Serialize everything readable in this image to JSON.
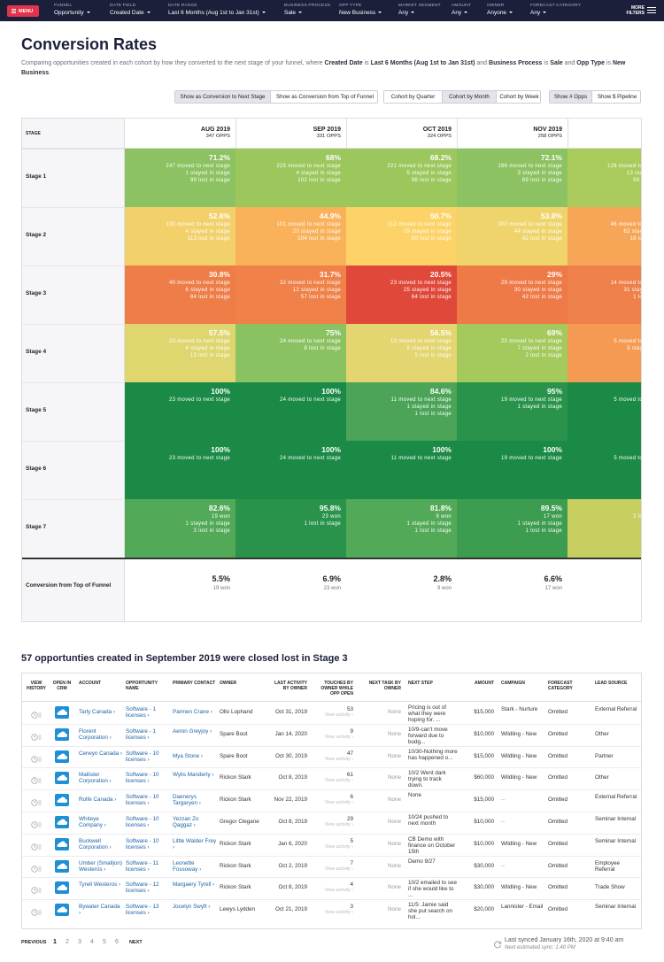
{
  "nav": {
    "menu": "MENU",
    "filters": [
      {
        "label": "FUNNEL",
        "value": "Opportunity"
      },
      {
        "label": "DATE FIELD",
        "value": "Created Date"
      },
      {
        "label": "DATE RANGE",
        "value": "Last 6 Months (Aug 1st to Jan 31st)"
      },
      {
        "label": "BUSINESS PROCESS",
        "value": "Sale"
      },
      {
        "label": "OPP TYPE",
        "value": "New Business"
      },
      {
        "label": "MARKET SEGMENT",
        "value": "Any"
      },
      {
        "label": "AMOUNT",
        "value": "Any"
      },
      {
        "label": "OWNER",
        "value": "Anyone"
      },
      {
        "label": "FORECAST CATEGORY",
        "value": "Any"
      }
    ],
    "more": [
      "MORE",
      "FILTERS"
    ]
  },
  "header": {
    "title": "Conversion Rates",
    "description": [
      {
        "t": "Comparing opportunities created in each cohort by how they converted to the next stage of your funnel, where ",
        "b": false
      },
      {
        "t": "Created Date",
        "b": true
      },
      {
        "t": " is ",
        "b": false
      },
      {
        "t": "Last 6 Months (Aug 1st to Jan 31st)",
        "b": true
      },
      {
        "t": " and ",
        "b": false
      },
      {
        "t": "Business Process",
        "b": true
      },
      {
        "t": " is ",
        "b": false
      },
      {
        "t": "Sale",
        "b": true
      },
      {
        "t": " and ",
        "b": false
      },
      {
        "t": "Opp Type",
        "b": true
      },
      {
        "t": " is ",
        "b": false
      },
      {
        "t": "New Business",
        "b": true
      },
      {
        "t": ".",
        "b": false
      }
    ]
  },
  "buttons": [
    {
      "items": [
        "Show as Conversion to Next Stage",
        "Show as Conversion from Top of Funnel"
      ],
      "active": 0
    },
    {
      "items": [
        "Cohort by Quarter",
        "Cohort by Month",
        "Cohort by Week"
      ],
      "active": 1
    },
    {
      "items": [
        "Show # Opps",
        "Show $ Pipeline"
      ],
      "active": 0
    }
  ],
  "heatmap": {
    "stage_header": "STAGE",
    "columns": [
      {
        "month": "AUG 2019",
        "opps": "347 OPPS"
      },
      {
        "month": "SEP 2019",
        "opps": "331 OPPS"
      },
      {
        "month": "OCT 2019",
        "opps": "324 OPPS"
      },
      {
        "month": "NOV 2019",
        "opps": "258 OPPS"
      }
    ],
    "rows": [
      {
        "stage": "Stage 1",
        "cells": [
          {
            "pct": "71.2%",
            "lines": [
              "247 moved to next stage",
              "1 stayed in stage",
              "99 lost in stage"
            ],
            "color": "#8cc261"
          },
          {
            "pct": "68%",
            "lines": [
              "225 moved to next stage",
              "4 stayed in stage",
              "102 lost in stage"
            ],
            "color": "#9bc75d"
          },
          {
            "pct": "68.2%",
            "lines": [
              "221 moved to next stage",
              "5 stayed in stage",
              "98 lost in stage"
            ],
            "color": "#9bc75d"
          },
          {
            "pct": "72.1%",
            "lines": [
              "186 moved to next stage",
              "3 stayed in stage",
              "69 lost in stage"
            ],
            "color": "#8cc261"
          }
        ],
        "partial": {
          "lines": [
            "126 moved to",
            "13 sta",
            "59 l"
          ],
          "color": "#a9cb5b"
        }
      },
      {
        "stage": "Stage 2",
        "cells": [
          {
            "pct": "52.6%",
            "lines": [
              "130 moved to next stage",
              "4 stayed in stage",
              "113 lost in stage"
            ],
            "color": "#f2d16b"
          },
          {
            "pct": "44.9%",
            "lines": [
              "101 moved to next stage",
              "20 stayed in stage",
              "104 lost in stage"
            ],
            "color": "#f9b15a"
          },
          {
            "pct": "50.7%",
            "lines": [
              "112 moved to next stage",
              "29 stayed in stage",
              "80 lost in stage"
            ],
            "color": "#fdd267"
          },
          {
            "pct": "53.8%",
            "lines": [
              "100 moved to next stage",
              "44 stayed in stage",
              "42 lost in stage"
            ],
            "color": "#efd46c"
          }
        ],
        "partial": {
          "lines": [
            "46 moved to",
            "62 stay",
            "18 lo"
          ],
          "color": "#f7a657"
        }
      },
      {
        "stage": "Stage 3",
        "cells": [
          {
            "pct": "30.8%",
            "lines": [
              "40 moved to next stage",
              "6 stayed in stage",
              "84 lost in stage"
            ],
            "color": "#ee7d48"
          },
          {
            "pct": "31.7%",
            "lines": [
              "32 moved to next stage",
              "12 stayed in stage",
              "57 lost in stage"
            ],
            "color": "#ef8149"
          },
          {
            "pct": "20.5%",
            "lines": [
              "23 moved to next stage",
              "25 stayed in stage",
              "64 lost in stage"
            ],
            "color": "#e0493a"
          },
          {
            "pct": "29%",
            "lines": [
              "29 moved to next stage",
              "30 stayed in stage",
              "42 lost in stage"
            ],
            "color": "#ee7b47"
          }
        ],
        "partial": {
          "lines": [
            "14 moved to",
            "31 stay",
            "1 lo"
          ],
          "color": "#ee8049"
        }
      },
      {
        "stage": "Stage 4",
        "cells": [
          {
            "pct": "57.5%",
            "lines": [
              "23 moved to next stage",
              "4 stayed in stage",
              "13 lost in stage"
            ],
            "color": "#e0d66f"
          },
          {
            "pct": "75%",
            "lines": [
              "24 moved to next stage",
              "8 lost in stage"
            ],
            "color": "#8bc261"
          },
          {
            "pct": "56.5%",
            "lines": [
              "13 moved to next stage",
              "5 stayed in stage",
              "5 lost in stage"
            ],
            "color": "#e3d56f"
          },
          {
            "pct": "69%",
            "lines": [
              "20 moved to next stage",
              "7 stayed in stage",
              "2 lost in stage"
            ],
            "color": "#a4c95c"
          }
        ],
        "partial": {
          "lines": [
            "5 moved to",
            "5 stay"
          ],
          "color": "#f59a52"
        }
      },
      {
        "stage": "Stage 5",
        "cells": [
          {
            "pct": "100%",
            "lines": [
              "23 moved to next stage"
            ],
            "color": "#1b8a46"
          },
          {
            "pct": "100%",
            "lines": [
              "24 moved to next stage"
            ],
            "color": "#1b8a46"
          },
          {
            "pct": "84.6%",
            "lines": [
              "11 moved to next stage",
              "1 stayed in stage",
              "1 lost in stage"
            ],
            "color": "#4ba457"
          },
          {
            "pct": "95%",
            "lines": [
              "19 moved to next stage",
              "1 stayed in stage"
            ],
            "color": "#2a934b"
          }
        ],
        "partial": {
          "lines": [
            "5 moved to"
          ],
          "color": "#1b8a46"
        }
      },
      {
        "stage": "Stage 6",
        "cells": [
          {
            "pct": "100%",
            "lines": [
              "23 moved to next stage"
            ],
            "color": "#1b8a46"
          },
          {
            "pct": "100%",
            "lines": [
              "24 moved to next stage"
            ],
            "color": "#1b8a46"
          },
          {
            "pct": "100%",
            "lines": [
              "11 moved to next stage"
            ],
            "color": "#1b8a46"
          },
          {
            "pct": "100%",
            "lines": [
              "19 moved to next stage"
            ],
            "color": "#1b8a46"
          }
        ],
        "partial": {
          "lines": [
            "5 moved to"
          ],
          "color": "#1b8a46"
        }
      },
      {
        "stage": "Stage 7",
        "cells": [
          {
            "pct": "82.6%",
            "lines": [
              "19 won",
              "1 stayed in stage",
              "3 lost in stage"
            ],
            "color": "#52a958"
          },
          {
            "pct": "95.8%",
            "lines": [
              "23 won",
              "1 lost in stage"
            ],
            "color": "#2a934b"
          },
          {
            "pct": "81.8%",
            "lines": [
              "9 won",
              "1 stayed in stage",
              "1 lost in stage"
            ],
            "color": "#52a958"
          },
          {
            "pct": "89.5%",
            "lines": [
              "17 won",
              "1 stayed in stage",
              "1 lost in stage"
            ],
            "color": "#3c9c50"
          }
        ],
        "partial": {
          "lines": [
            "2 lo"
          ],
          "color": "#c7cf60"
        }
      }
    ],
    "total": {
      "label": "Conversion from Top of Funnel",
      "cells": [
        {
          "pct": "5.5%",
          "won": "19 won"
        },
        {
          "pct": "6.9%",
          "won": "23 won"
        },
        {
          "pct": "2.8%",
          "won": "9 won"
        },
        {
          "pct": "6.6%",
          "won": "17 won"
        }
      ]
    }
  },
  "lost": {
    "title": "57 opportunties created in September 2019 were closed lost in Stage 3",
    "headers": [
      "VIEW HISTORY",
      "OPEN IN CRM",
      "ACCOUNT",
      "OPPORTUNITY NAME",
      "PRIMARY CONTACT",
      "OWNER",
      "LAST ACTIVITY BY OWNER",
      "TOUCHES BY OWNER WHILE OPP OPEN",
      "NEXT TASK BY OWNER",
      "NEXT STEP",
      "AMOUNT",
      "CAMPAIGN",
      "FORECAST CATEGORY",
      "LEAD SOURCE"
    ],
    "view_activity": "View activity ›",
    "rows": [
      {
        "account": "Tarly Canada ›",
        "opportunity": "Software - 1 licenses ›",
        "contact": "Parmen Crane ›",
        "owner": "Ollo Lophand",
        "last_activity": "Oct 31, 2019",
        "touches": "53",
        "next_task": "None",
        "next_step": "Pricing is out of what they were hoping for. ...",
        "amount": "$15,000",
        "campaign": "Stark - Nurture",
        "forecast": "Omitted",
        "lead_source": "External Referral"
      },
      {
        "account": "Florent Corporation ›",
        "opportunity": "Software - 1 licenses ›",
        "contact": "Aeron Greyjoy ›",
        "owner": "Spare Boot",
        "last_activity": "Jan 14, 2020",
        "touches": "9",
        "next_task": "None",
        "next_step": "10/9-can't move forward due to budg...",
        "amount": "$10,000",
        "campaign": "Wildling - New",
        "forecast": "Omitted",
        "lead_source": "Other"
      },
      {
        "account": "Cerwyn Canada ›",
        "opportunity": "Software - 10 licenses ›",
        "contact": "Mya Stone ›",
        "owner": "Spare Boot",
        "last_activity": "Oct 30, 2019",
        "touches": "47",
        "next_task": "None",
        "next_step": "10/30-Nothing more has happened o...",
        "amount": "$15,000",
        "campaign": "Wildling - New",
        "forecast": "Omitted",
        "lead_source": "Partner"
      },
      {
        "account": "Mallister Corporation ›",
        "opportunity": "Software - 10 licenses ›",
        "contact": "Wylis Manderly ›",
        "owner": "Rickon Stark",
        "last_activity": "Oct 8, 2019",
        "touches": "61",
        "next_task": "None",
        "next_step": "10/2 Went dark trying to track down.",
        "amount": "$60,000",
        "campaign": "Wildling - New",
        "forecast": "Omitted",
        "lead_source": "Other"
      },
      {
        "account": "Rolfe Canada ›",
        "opportunity": "Software - 10 licenses ›",
        "contact": "Daenerys Targaryen ›",
        "owner": "Rickon Stark",
        "last_activity": "Nov 22, 2019",
        "touches": "6",
        "next_task": "None",
        "next_step": "None",
        "amount": "$15,000",
        "campaign": "--",
        "forecast": "Omitted",
        "lead_source": "External Referral"
      },
      {
        "account": "Whiteye Company ›",
        "opportunity": "Software - 10 licenses ›",
        "contact": "Yezzan Zo Qaggaz ›",
        "owner": "Gregor Clegane",
        "last_activity": "Oct 8, 2019",
        "touches": "29",
        "next_task": "None",
        "next_step": "10/24 pushed to next month",
        "amount": "$10,000",
        "campaign": "--",
        "forecast": "Omitted",
        "lead_source": "Seminar Internal"
      },
      {
        "account": "Buckwell Corporation ›",
        "opportunity": "Software - 10 licenses ›",
        "contact": "Little Walder Frey ›",
        "owner": "Rickon Stark",
        "last_activity": "Jan 6, 2020",
        "touches": "5",
        "next_task": "None",
        "next_step": "CB Demo with finance on October 15th",
        "amount": "$10,000",
        "campaign": "Wildling - New",
        "forecast": "Omitted",
        "lead_source": "Seminar Internal"
      },
      {
        "account": "Umber (Smalljon) Westeros ›",
        "opportunity": "Software - 11 licenses ›",
        "contact": "Leonette Fossoway ›",
        "owner": "Rickon Stark",
        "last_activity": "Oct 2, 2019",
        "touches": "7",
        "next_task": "None",
        "next_step": "Demo 9/27",
        "amount": "$30,000",
        "campaign": "--",
        "forecast": "Omitted",
        "lead_source": "Employee Referral"
      },
      {
        "account": "Tyrell Westeros ›",
        "opportunity": "Software - 12 licenses ›",
        "contact": "Margaery Tyrell ›",
        "owner": "Rickon Stark",
        "last_activity": "Oct 8, 2019",
        "touches": "4",
        "next_task": "None",
        "next_step": "10/2 emailed to see if she would like to ...",
        "amount": "$30,000",
        "campaign": "Wildling - New",
        "forecast": "Omitted",
        "lead_source": "Trade Show"
      },
      {
        "account": "Bywater Canada ›",
        "opportunity": "Software - 13 licenses ›",
        "contact": "Jocelyn Swyft ›",
        "owner": "Lewys Lydden",
        "last_activity": "Oct 21, 2019",
        "touches": "3",
        "next_task": "None",
        "next_step": "11/5: Jamie said she put search on hol...",
        "amount": "$20,000",
        "campaign": "Lannister - Email",
        "forecast": "Omitted",
        "lead_source": "Seminar Internal"
      }
    ]
  },
  "footer": {
    "previous": "PREVIOUS",
    "pages": [
      "1",
      "2",
      "3",
      "4",
      "5",
      "6"
    ],
    "current": 0,
    "next": "NEXT",
    "synced": "Last synced January 16th, 2020 at 9:40 am",
    "next_sync": "Next estimated sync: 1:40 PM"
  }
}
